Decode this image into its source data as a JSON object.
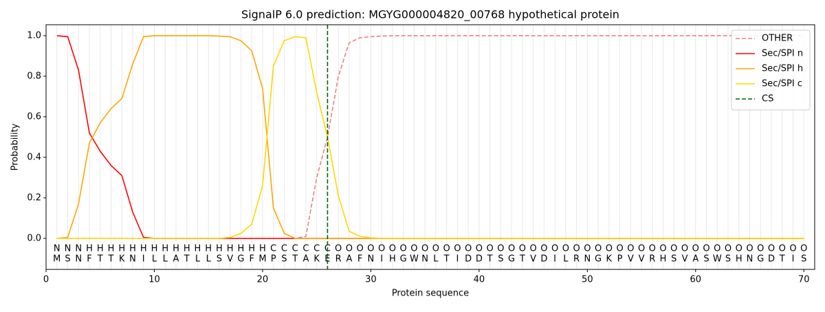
{
  "chart_data": {
    "type": "line",
    "title": "SignalP 6.0 prediction: MGYG000004820_00768 hypothetical protein",
    "x_label": "Protein sequence",
    "y_label": "Probability",
    "x": [
      1,
      2,
      3,
      4,
      5,
      6,
      7,
      8,
      9,
      10,
      11,
      12,
      13,
      14,
      15,
      16,
      17,
      18,
      19,
      20,
      21,
      22,
      23,
      24,
      25,
      26,
      27,
      28,
      29,
      30,
      31,
      32,
      33,
      34,
      35,
      36,
      37,
      38,
      39,
      40,
      41,
      42,
      43,
      44,
      45,
      46,
      47,
      48,
      49,
      50,
      51,
      52,
      53,
      54,
      55,
      56,
      57,
      58,
      59,
      60,
      61,
      62,
      63,
      64,
      65,
      66,
      67,
      68,
      69,
      70
    ],
    "series": [
      {
        "name": "OTHER",
        "color": "#e88080",
        "dashed": true,
        "values": [
          0,
          0,
          0,
          0,
          0,
          0,
          0,
          0,
          0,
          0,
          0,
          0,
          0,
          0,
          0,
          0,
          0,
          0,
          0,
          0,
          0,
          0,
          0,
          0.01,
          0.3,
          0.5,
          0.8,
          0.965,
          0.99,
          0.995,
          0.998,
          1,
          1,
          1,
          1,
          1,
          1,
          1,
          1,
          1,
          1,
          1,
          1,
          1,
          1,
          1,
          1,
          1,
          1,
          1,
          1,
          1,
          1,
          1,
          1,
          1,
          1,
          1,
          1,
          1,
          1,
          1,
          1,
          1,
          1,
          1,
          1,
          1,
          1,
          1
        ]
      },
      {
        "name": "Sec/SPI n",
        "color": "#ff0000",
        "dashed": false,
        "values": [
          1.0,
          0.995,
          0.83,
          0.52,
          0.43,
          0.36,
          0.31,
          0.13,
          0.005,
          0,
          0,
          0,
          0,
          0,
          0,
          0,
          0,
          0,
          0,
          0,
          0,
          0,
          0,
          0,
          0,
          0,
          0,
          0,
          0,
          0,
          0,
          0,
          0,
          0,
          0,
          0,
          0,
          0,
          0,
          0,
          0,
          0,
          0,
          0,
          0,
          0,
          0,
          0,
          0,
          0,
          0,
          0,
          0,
          0,
          0,
          0,
          0,
          0,
          0,
          0,
          0,
          0,
          0,
          0,
          0,
          0,
          0,
          0,
          0,
          0
        ]
      },
      {
        "name": "Sec/SPI h",
        "color": "#ffa500",
        "dashed": false,
        "values": [
          0,
          0.005,
          0.17,
          0.47,
          0.57,
          0.64,
          0.69,
          0.86,
          0.995,
          1,
          1,
          1,
          1,
          1,
          1,
          0.998,
          0.995,
          0.975,
          0.925,
          0.74,
          0.15,
          0.025,
          0,
          0,
          0,
          0,
          0,
          0,
          0,
          0,
          0,
          0,
          0,
          0,
          0,
          0,
          0,
          0,
          0,
          0,
          0,
          0,
          0,
          0,
          0,
          0,
          0,
          0,
          0,
          0,
          0,
          0,
          0,
          0,
          0,
          0,
          0,
          0,
          0,
          0,
          0,
          0,
          0,
          0,
          0,
          0,
          0,
          0,
          0,
          0
        ]
      },
      {
        "name": "Sec/SPI c",
        "color": "#ffd700",
        "dashed": false,
        "values": [
          0,
          0,
          0,
          0,
          0,
          0,
          0,
          0,
          0,
          0,
          0,
          0,
          0,
          0,
          0,
          0,
          0.005,
          0.025,
          0.07,
          0.26,
          0.85,
          0.975,
          0.995,
          0.99,
          0.72,
          0.5,
          0.21,
          0.035,
          0.01,
          0.003,
          0,
          0,
          0,
          0,
          0,
          0,
          0,
          0,
          0,
          0,
          0,
          0,
          0,
          0,
          0,
          0,
          0,
          0,
          0,
          0,
          0,
          0,
          0,
          0,
          0,
          0,
          0,
          0,
          0,
          0,
          0,
          0,
          0,
          0,
          0,
          0,
          0,
          0,
          0,
          0
        ]
      }
    ],
    "cs": {
      "name": "CS",
      "x": 26,
      "color": "#006400"
    },
    "residues": [
      "M",
      "S",
      "N",
      "F",
      "T",
      "T",
      "K",
      "N",
      "I",
      "L",
      "L",
      "A",
      "T",
      "L",
      "L",
      "S",
      "V",
      "G",
      "F",
      "M",
      "P",
      "S",
      "T",
      "A",
      "K",
      "E",
      "R",
      "A",
      "F",
      "N",
      "I",
      "H",
      "G",
      "W",
      "N",
      "L",
      "T",
      "I",
      "D",
      "D",
      "T",
      "S",
      "G",
      "T",
      "V",
      "D",
      "I",
      "L",
      "R",
      "N",
      "G",
      "K",
      "P",
      "V",
      "V",
      "R",
      "H",
      "S",
      "V",
      "A",
      "S",
      "W",
      "S",
      "H",
      "N",
      "G",
      "D",
      "T",
      "I",
      "S"
    ],
    "residue_labels": [
      "N",
      "N",
      "N",
      "H",
      "H",
      "H",
      "H",
      "H",
      "H",
      "H",
      "H",
      "H",
      "H",
      "H",
      "H",
      "H",
      "H",
      "H",
      "H",
      "H",
      "C",
      "C",
      "C",
      "C",
      "C",
      "C",
      "O",
      "O",
      "O",
      "O",
      "O",
      "O",
      "O",
      "O",
      "O",
      "O",
      "O",
      "O",
      "O",
      "O",
      "O",
      "O",
      "O",
      "O",
      "O",
      "O",
      "O",
      "O",
      "O",
      "O",
      "O",
      "O",
      "O",
      "O",
      "O",
      "O",
      "O",
      "O",
      "O",
      "O",
      "O",
      "O",
      "O",
      "O",
      "O",
      "O",
      "O",
      "O",
      "O",
      "O"
    ],
    "residue_label_colors": {
      "N": "#ff0000",
      "H": "#ffa500",
      "C": "#ffc000",
      "O": "#808080"
    },
    "xlim": [
      0,
      71
    ],
    "ylim": [
      -0.153,
      1.054
    ],
    "xticks": [
      0,
      10,
      20,
      30,
      40,
      50,
      60,
      70
    ],
    "yticks": [
      {
        "value": 0,
        "label": "0.0"
      },
      {
        "value": 0.2,
        "label": "0.2"
      },
      {
        "value": 0.4,
        "label": "0.4"
      },
      {
        "value": 0.6,
        "label": "0.6"
      },
      {
        "value": 0.8,
        "label": "0.8"
      },
      {
        "value": 1,
        "label": "1.0"
      }
    ],
    "grid": true,
    "legend": "upper right"
  }
}
